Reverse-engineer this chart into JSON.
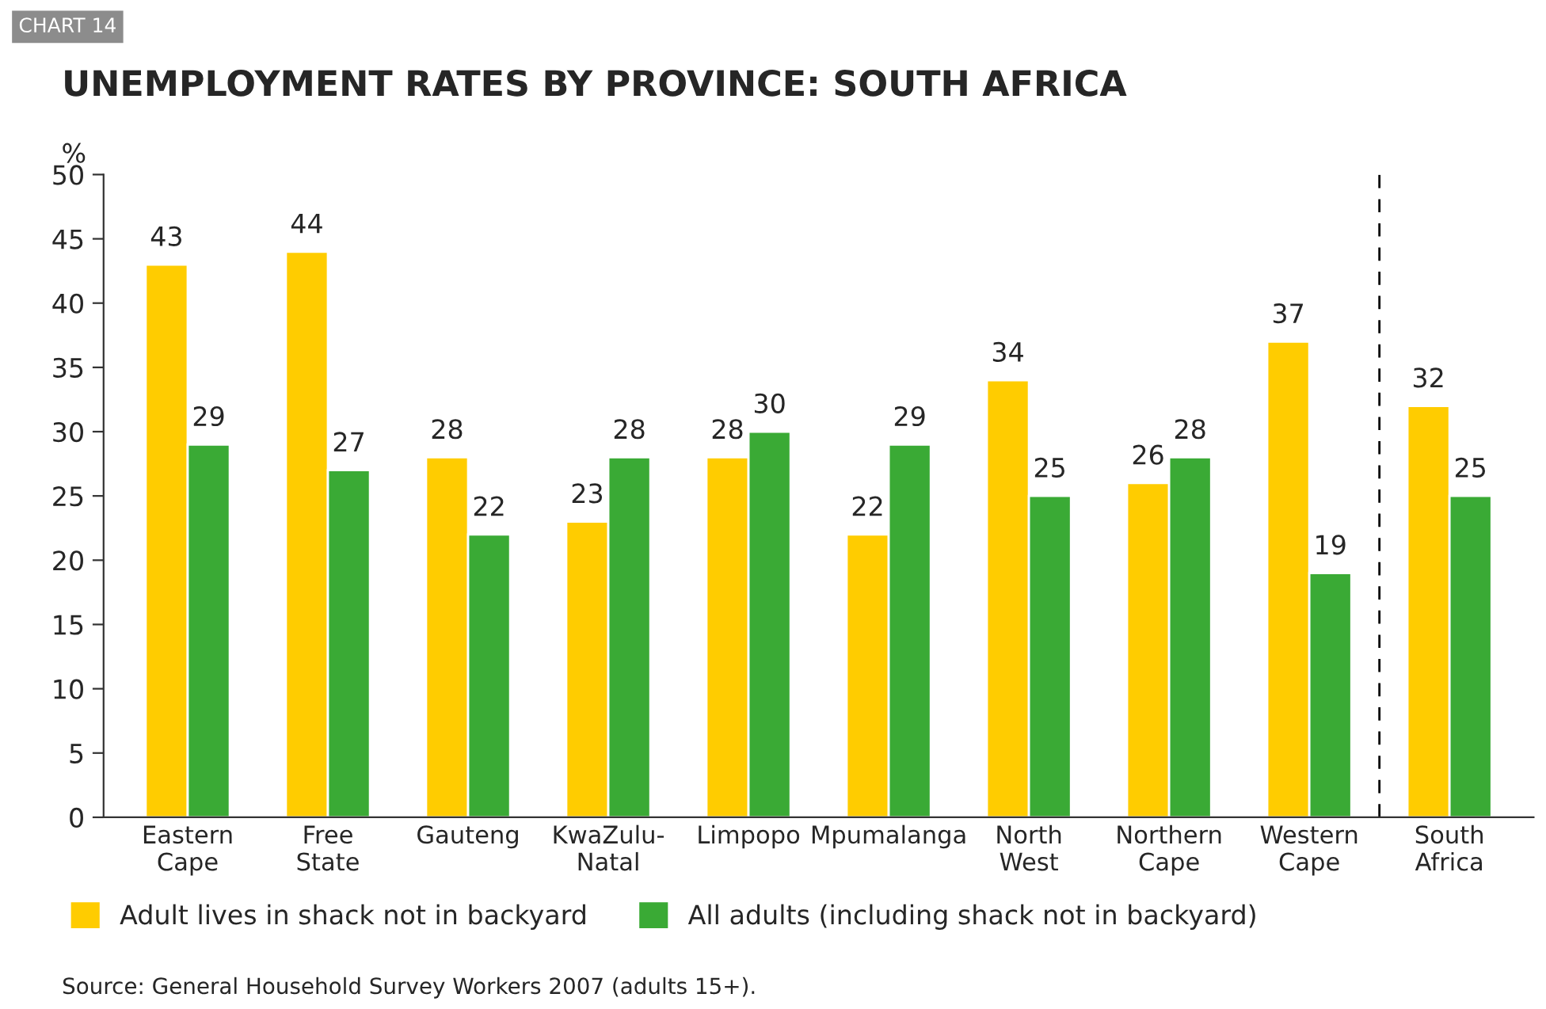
{
  "chart_data": {
    "type": "bar",
    "title": "UNEMPLOYMENT RATES BY PROVINCE: SOUTH AFRICA",
    "ylabel": "%",
    "annotations": [
      "CHART 14",
      "Source: General Household Survey Workers 2007 (adults 15+)."
    ],
    "categories": [
      "Eastern\nCape",
      "Free\nState",
      "Gauteng",
      "KwaZulu-\nNatal",
      "Limpopo",
      "Mpumalanga",
      "North\nWest",
      "Northern\nCape",
      "Western\nCape",
      "South\nAfrica"
    ],
    "series": [
      {
        "name": "Adult lives in shack not in backyard",
        "color": "#ffcc00",
        "values": [
          43,
          44,
          28,
          23,
          28,
          22,
          34,
          26,
          37,
          32
        ]
      },
      {
        "name": "All adults (including shack not in backyard)",
        "color": "#3aaa35",
        "values": [
          29,
          27,
          22,
          28,
          30,
          29,
          25,
          28,
          19,
          25
        ]
      }
    ],
    "ylim": [
      0,
      50
    ],
    "yticks": [
      0,
      5,
      10,
      15,
      20,
      25,
      30,
      35,
      40,
      45,
      50
    ],
    "data_labels": true,
    "grid": false,
    "legend": "bottom"
  }
}
